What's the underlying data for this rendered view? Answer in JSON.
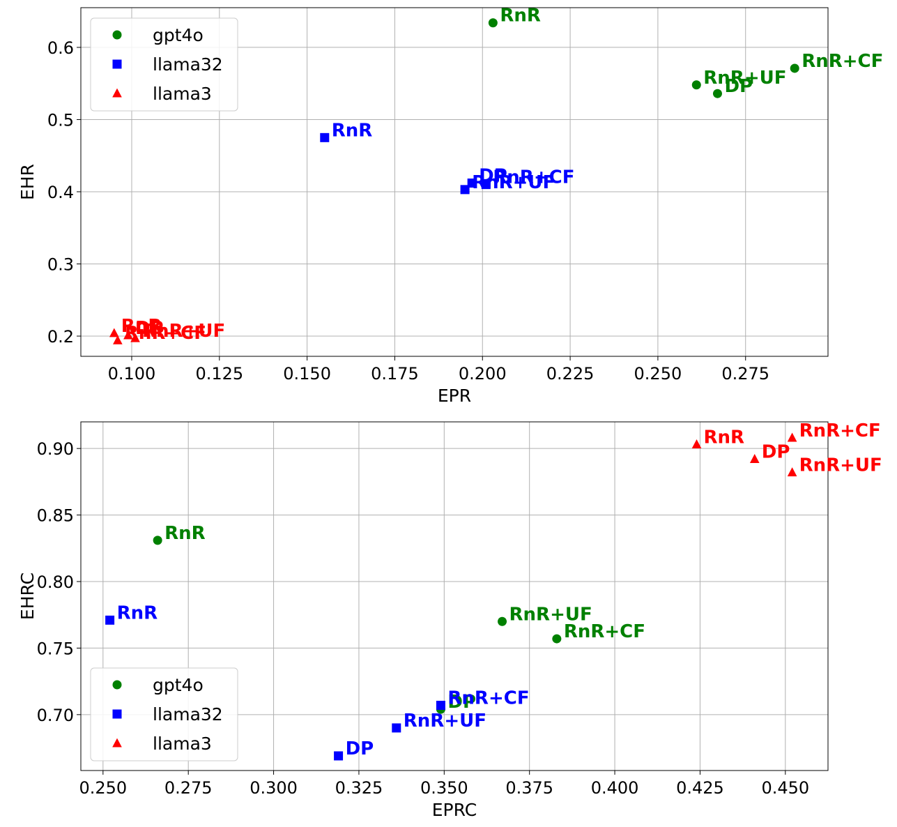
{
  "chart_data": [
    {
      "type": "scatter",
      "title": "",
      "xlabel": "EPR",
      "ylabel": "EHR",
      "xlim": [
        0.0855,
        0.2985
      ],
      "ylim": [
        0.172,
        0.655
      ],
      "xticks": [
        "0.100",
        "0.125",
        "0.150",
        "0.175",
        "0.200",
        "0.225",
        "0.250",
        "0.275"
      ],
      "yticks": [
        "0.2",
        "0.3",
        "0.4",
        "0.5",
        "0.6"
      ],
      "grid": true,
      "legend_position": "top-left",
      "series": [
        {
          "name": "gpt4o",
          "marker": "circle",
          "color": "#008000",
          "points": [
            {
              "label": "RnR",
              "x": 0.203,
              "y": 0.634
            },
            {
              "label": "RnR+CF",
              "x": 0.289,
              "y": 0.571
            },
            {
              "label": "RnR+UF",
              "x": 0.261,
              "y": 0.548
            },
            {
              "label": "DP",
              "x": 0.267,
              "y": 0.536
            }
          ]
        },
        {
          "name": "llama32",
          "marker": "square",
          "color": "#0000ff",
          "points": [
            {
              "label": "RnR",
              "x": 0.155,
              "y": 0.475
            },
            {
              "label": "DP",
              "x": 0.197,
              "y": 0.412
            },
            {
              "label": "RnR+CF",
              "x": 0.201,
              "y": 0.41
            },
            {
              "label": "RnR+UF",
              "x": 0.195,
              "y": 0.403
            }
          ]
        },
        {
          "name": "llama3",
          "marker": "triangle",
          "color": "#ff0000",
          "points": [
            {
              "label": "RnR",
              "x": 0.095,
              "y": 0.204
            },
            {
              "label": "DP",
              "x": 0.099,
              "y": 0.201
            },
            {
              "label": "RnR+UF",
              "x": 0.101,
              "y": 0.197
            },
            {
              "label": "RnR+CF",
              "x": 0.096,
              "y": 0.194
            }
          ]
        }
      ]
    },
    {
      "type": "scatter",
      "title": "",
      "xlabel": "EPRC",
      "ylabel": "EHRC",
      "xlim": [
        0.2435,
        0.4625
      ],
      "ylim": [
        0.658,
        0.92
      ],
      "xticks": [
        "0.250",
        "0.275",
        "0.300",
        "0.325",
        "0.350",
        "0.375",
        "0.400",
        "0.425",
        "0.450"
      ],
      "yticks": [
        "0.70",
        "0.75",
        "0.80",
        "0.85",
        "0.90"
      ],
      "grid": true,
      "legend_position": "bottom-left",
      "series": [
        {
          "name": "gpt4o",
          "marker": "circle",
          "color": "#008000",
          "points": [
            {
              "label": "RnR",
              "x": 0.266,
              "y": 0.831
            },
            {
              "label": "RnR+UF",
              "x": 0.367,
              "y": 0.77
            },
            {
              "label": "RnR+CF",
              "x": 0.383,
              "y": 0.757
            },
            {
              "label": "DP",
              "x": 0.349,
              "y": 0.704
            }
          ]
        },
        {
          "name": "llama32",
          "marker": "square",
          "color": "#0000ff",
          "points": [
            {
              "label": "RnR",
              "x": 0.252,
              "y": 0.771
            },
            {
              "label": "RnR+CF",
              "x": 0.349,
              "y": 0.707
            },
            {
              "label": "RnR+UF",
              "x": 0.336,
              "y": 0.69
            },
            {
              "label": "DP",
              "x": 0.319,
              "y": 0.669
            }
          ]
        },
        {
          "name": "llama3",
          "marker": "triangle",
          "color": "#ff0000",
          "points": [
            {
              "label": "RnR",
              "x": 0.424,
              "y": 0.903
            },
            {
              "label": "RnR+CF",
              "x": 0.452,
              "y": 0.908
            },
            {
              "label": "DP",
              "x": 0.441,
              "y": 0.892
            },
            {
              "label": "RnR+UF",
              "x": 0.452,
              "y": 0.882
            }
          ]
        }
      ]
    }
  ]
}
